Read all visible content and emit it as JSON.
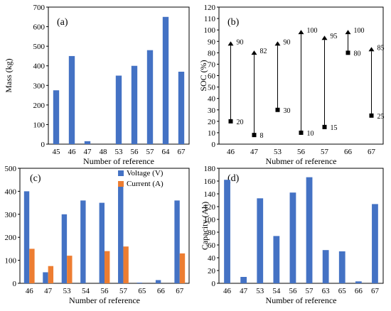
{
  "colors": {
    "blue": "#4472c4",
    "orange": "#ed7d31"
  },
  "chart_data": [
    {
      "type": "bar",
      "panel_label": "(a)",
      "xlabel": "Number of reference",
      "ylabel": "Mass (kg)",
      "ylim": [
        0,
        700
      ],
      "yticks": [
        0,
        100,
        200,
        300,
        400,
        500,
        600,
        700
      ],
      "categories": [
        "45",
        "46",
        "47",
        "48",
        "53",
        "56",
        "57",
        "64",
        "67"
      ],
      "series": [
        {
          "values": [
            275,
            450,
            15,
            0,
            350,
            400,
            480,
            650,
            370
          ]
        }
      ]
    },
    {
      "type": "range",
      "panel_label": "(b)",
      "xlabel": "Nubmer of reference",
      "ylabel": "SOC (%)",
      "ylim": [
        0,
        120
      ],
      "yticks": [
        0,
        10,
        20,
        30,
        40,
        50,
        60,
        70,
        80,
        90,
        100,
        110,
        120
      ],
      "categories": [
        "46",
        "47",
        "53",
        "56",
        "57",
        "66",
        "67"
      ],
      "points": [
        {
          "category": "46",
          "low": 20,
          "high": 90
        },
        {
          "category": "47",
          "low": 8,
          "high": 82
        },
        {
          "category": "53",
          "low": 30,
          "high": 90
        },
        {
          "category": "56",
          "low": 10,
          "high": 100
        },
        {
          "category": "57",
          "low": 15,
          "high": 95
        },
        {
          "category": "66",
          "low": 80,
          "high": 100
        },
        {
          "category": "67",
          "low": 25,
          "high": 85
        }
      ]
    },
    {
      "type": "bar",
      "panel_label": "(c)",
      "xlabel": "Number of reference",
      "ylabel": "",
      "ylim": [
        0,
        500
      ],
      "yticks": [
        0,
        100,
        200,
        300,
        400,
        500
      ],
      "categories": [
        "46",
        "47",
        "53",
        "54",
        "56",
        "57",
        "65",
        "66",
        "67"
      ],
      "legend_position": "top-right",
      "series": [
        {
          "name": "Voltage (V)",
          "values": [
            400,
            48,
            300,
            360,
            350,
            420,
            3,
            14,
            360
          ]
        },
        {
          "name": "Current (A)",
          "values": [
            150,
            75,
            120,
            0,
            140,
            160,
            0,
            0,
            130
          ]
        }
      ]
    },
    {
      "type": "bar",
      "panel_label": "(d)",
      "xlabel": "Number of reference",
      "ylabel": "Capacity (Ah)",
      "ylim": [
        0,
        180
      ],
      "yticks": [
        0,
        20,
        40,
        60,
        80,
        100,
        120,
        140,
        160,
        180
      ],
      "categories": [
        "46",
        "47",
        "53",
        "54",
        "56",
        "57",
        "63",
        "65",
        "66",
        "67"
      ],
      "series": [
        {
          "values": [
            162,
            10,
            133,
            74,
            142,
            166,
            52,
            50,
            3,
            124
          ]
        }
      ]
    }
  ]
}
